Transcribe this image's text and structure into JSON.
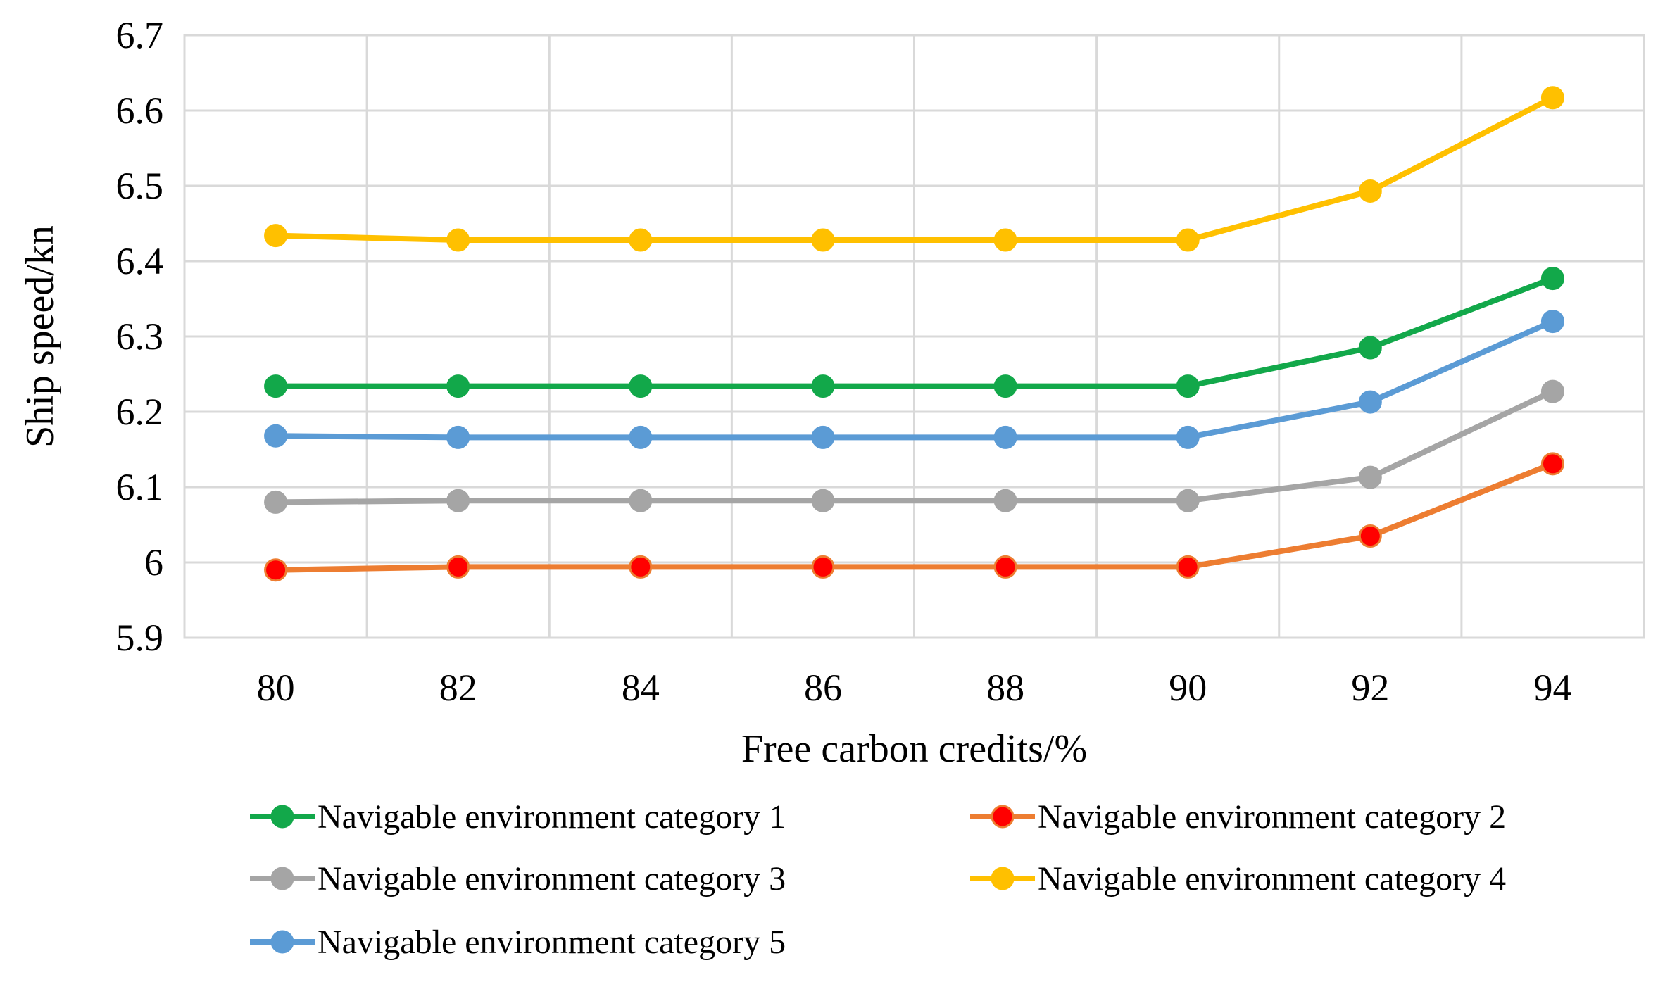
{
  "chart_data": {
    "type": "line",
    "title": "",
    "xlabel": "Free carbon  credits/%",
    "ylabel": "Ship speed/kn",
    "x": [
      80,
      82,
      84,
      86,
      88,
      90,
      92,
      94
    ],
    "x_tick_labels": [
      "80",
      "82",
      "84",
      "86",
      "88",
      "90",
      "92",
      "94"
    ],
    "ylim": [
      5.9,
      6.7
    ],
    "y_tick_labels": [
      "5.9",
      "6",
      "6.1",
      "6.2",
      "6.3",
      "6.4",
      "6.5",
      "6.6",
      "6.7"
    ],
    "grid": true,
    "legend_position": "bottom",
    "series": [
      {
        "name": "Navigable environment category 1",
        "color": "#12a84a",
        "marker_color": "#12a84a",
        "values": [
          6.234,
          6.234,
          6.234,
          6.234,
          6.234,
          6.234,
          6.285,
          6.377
        ]
      },
      {
        "name": "Navigable environment category 2",
        "color": "#ed7d31",
        "marker_color": "#ff0000",
        "values": [
          5.99,
          5.994,
          5.994,
          5.994,
          5.994,
          5.994,
          6.035,
          6.131
        ]
      },
      {
        "name": "Navigable environment category 3",
        "color": "#a5a5a5",
        "marker_color": "#a5a5a5",
        "values": [
          6.08,
          6.082,
          6.082,
          6.082,
          6.082,
          6.082,
          6.113,
          6.227
        ]
      },
      {
        "name": "Navigable environment category 4",
        "color": "#ffc000",
        "marker_color": "#ffc000",
        "values": [
          6.434,
          6.428,
          6.428,
          6.428,
          6.428,
          6.428,
          6.493,
          6.617
        ]
      },
      {
        "name": "Navigable environment category 5",
        "color": "#5b9bd5",
        "marker_color": "#5b9bd5",
        "values": [
          6.168,
          6.166,
          6.166,
          6.166,
          6.166,
          6.166,
          6.213,
          6.32
        ]
      }
    ]
  }
}
